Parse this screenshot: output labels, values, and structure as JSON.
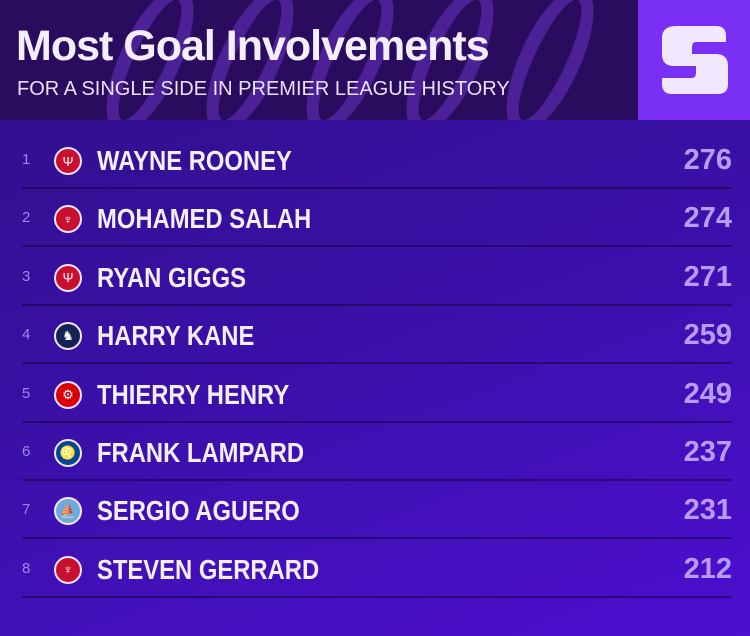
{
  "header": {
    "title": "Most Goal Involvements",
    "subtitle": "FOR A SINGLE SIDE IN PREMIER LEAGUE HISTORY",
    "logo_letter": "S"
  },
  "colors": {
    "header_bg": "#2a0c5e",
    "logo_bg": "#7a2ff5",
    "value": "#b79cfa"
  },
  "rows": [
    {
      "rank": "1",
      "name": "WAYNE ROONEY",
      "value": "276",
      "badge": "manchester-united-crest",
      "badge_color": "#c8102e",
      "glyph": "Ψ"
    },
    {
      "rank": "2",
      "name": "MOHAMED SALAH",
      "value": "274",
      "badge": "liverpool-crest",
      "badge_color": "#c8102e",
      "glyph": "♆"
    },
    {
      "rank": "3",
      "name": "RYAN GIGGS",
      "value": "271",
      "badge": "manchester-united-crest",
      "badge_color": "#c8102e",
      "glyph": "Ψ"
    },
    {
      "rank": "4",
      "name": "HARRY KANE",
      "value": "259",
      "badge": "tottenham-crest",
      "badge_color": "#132257",
      "glyph": "♞"
    },
    {
      "rank": "5",
      "name": "THIERRY HENRY",
      "value": "249",
      "badge": "arsenal-crest",
      "badge_color": "#db0007",
      "glyph": "⚙"
    },
    {
      "rank": "6",
      "name": "FRANK LAMPARD",
      "value": "237",
      "badge": "chelsea-crest",
      "badge_color": "#034694",
      "glyph": "♌"
    },
    {
      "rank": "7",
      "name": "SERGIO AGUERO",
      "value": "231",
      "badge": "manchester-city-crest",
      "badge_color": "#6cabdd",
      "glyph": "⛵"
    },
    {
      "rank": "8",
      "name": "STEVEN GERRARD",
      "value": "212",
      "badge": "liverpool-crest",
      "badge_color": "#c8102e",
      "glyph": "♆"
    }
  ]
}
